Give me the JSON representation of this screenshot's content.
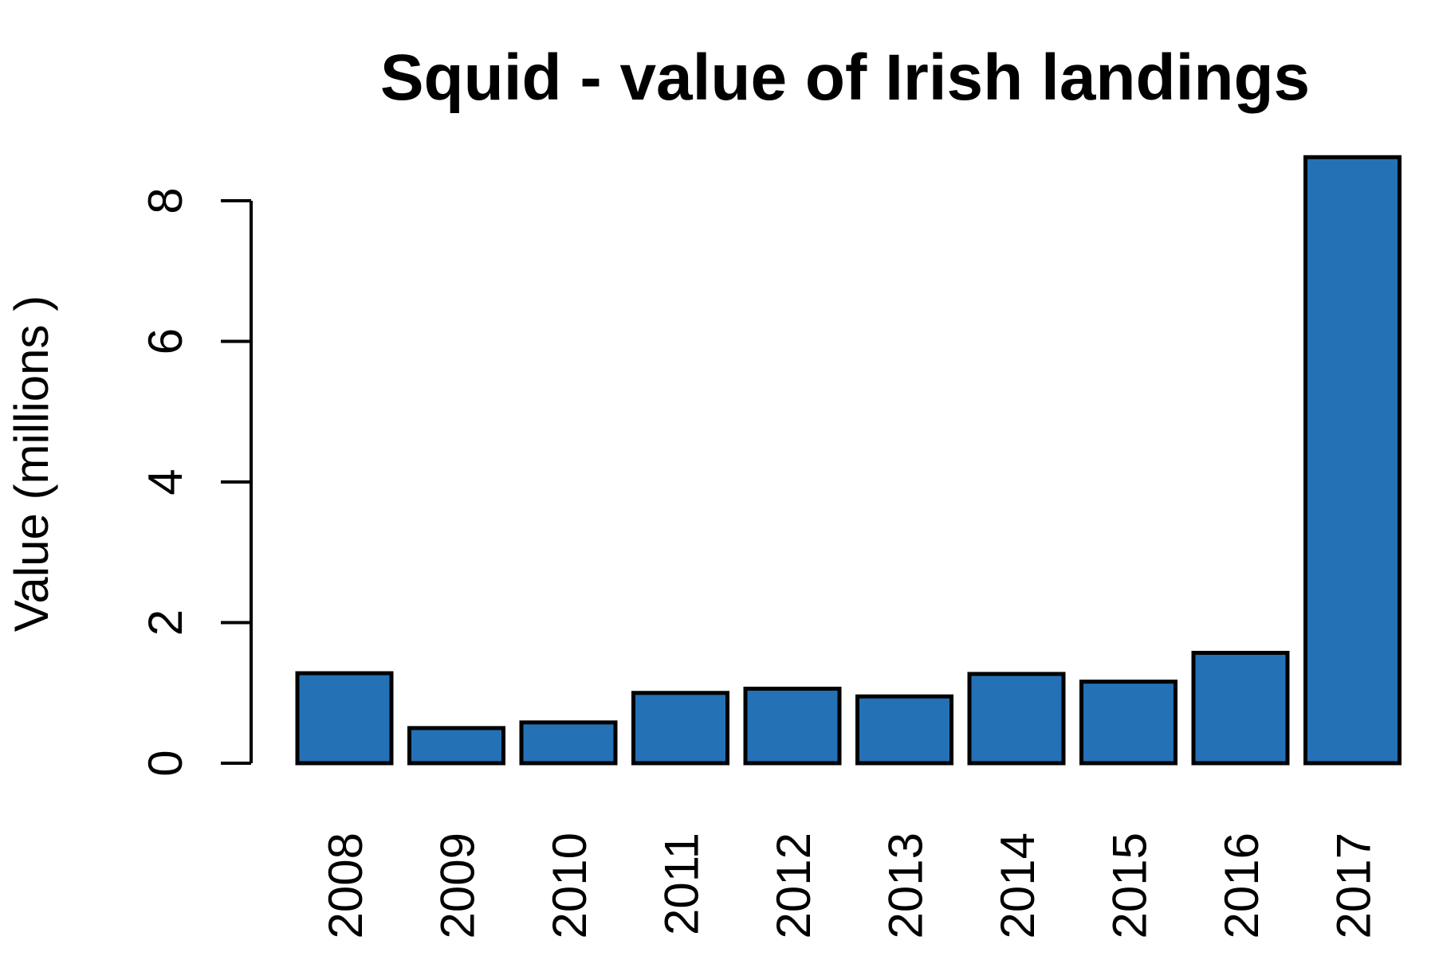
{
  "chart_data": {
    "type": "bar",
    "title": "Squid - value of Irish landings",
    "xlabel": "",
    "ylabel": "Value (millions )",
    "categories": [
      "2008",
      "2009",
      "2010",
      "2011",
      "2012",
      "2013",
      "2014",
      "2015",
      "2016",
      "2017"
    ],
    "values": [
      1.28,
      0.5,
      0.58,
      1.0,
      1.06,
      0.95,
      1.27,
      1.16,
      1.57,
      8.62
    ],
    "yticks": [
      0,
      2,
      4,
      6,
      8
    ],
    "ytick_labels": [
      "0",
      "2",
      "4",
      "6",
      "8"
    ],
    "ylim": [
      0,
      8
    ],
    "grid": false,
    "legend": "none",
    "bar_color": "#2471b5",
    "bar_edge_color": "#000000"
  }
}
